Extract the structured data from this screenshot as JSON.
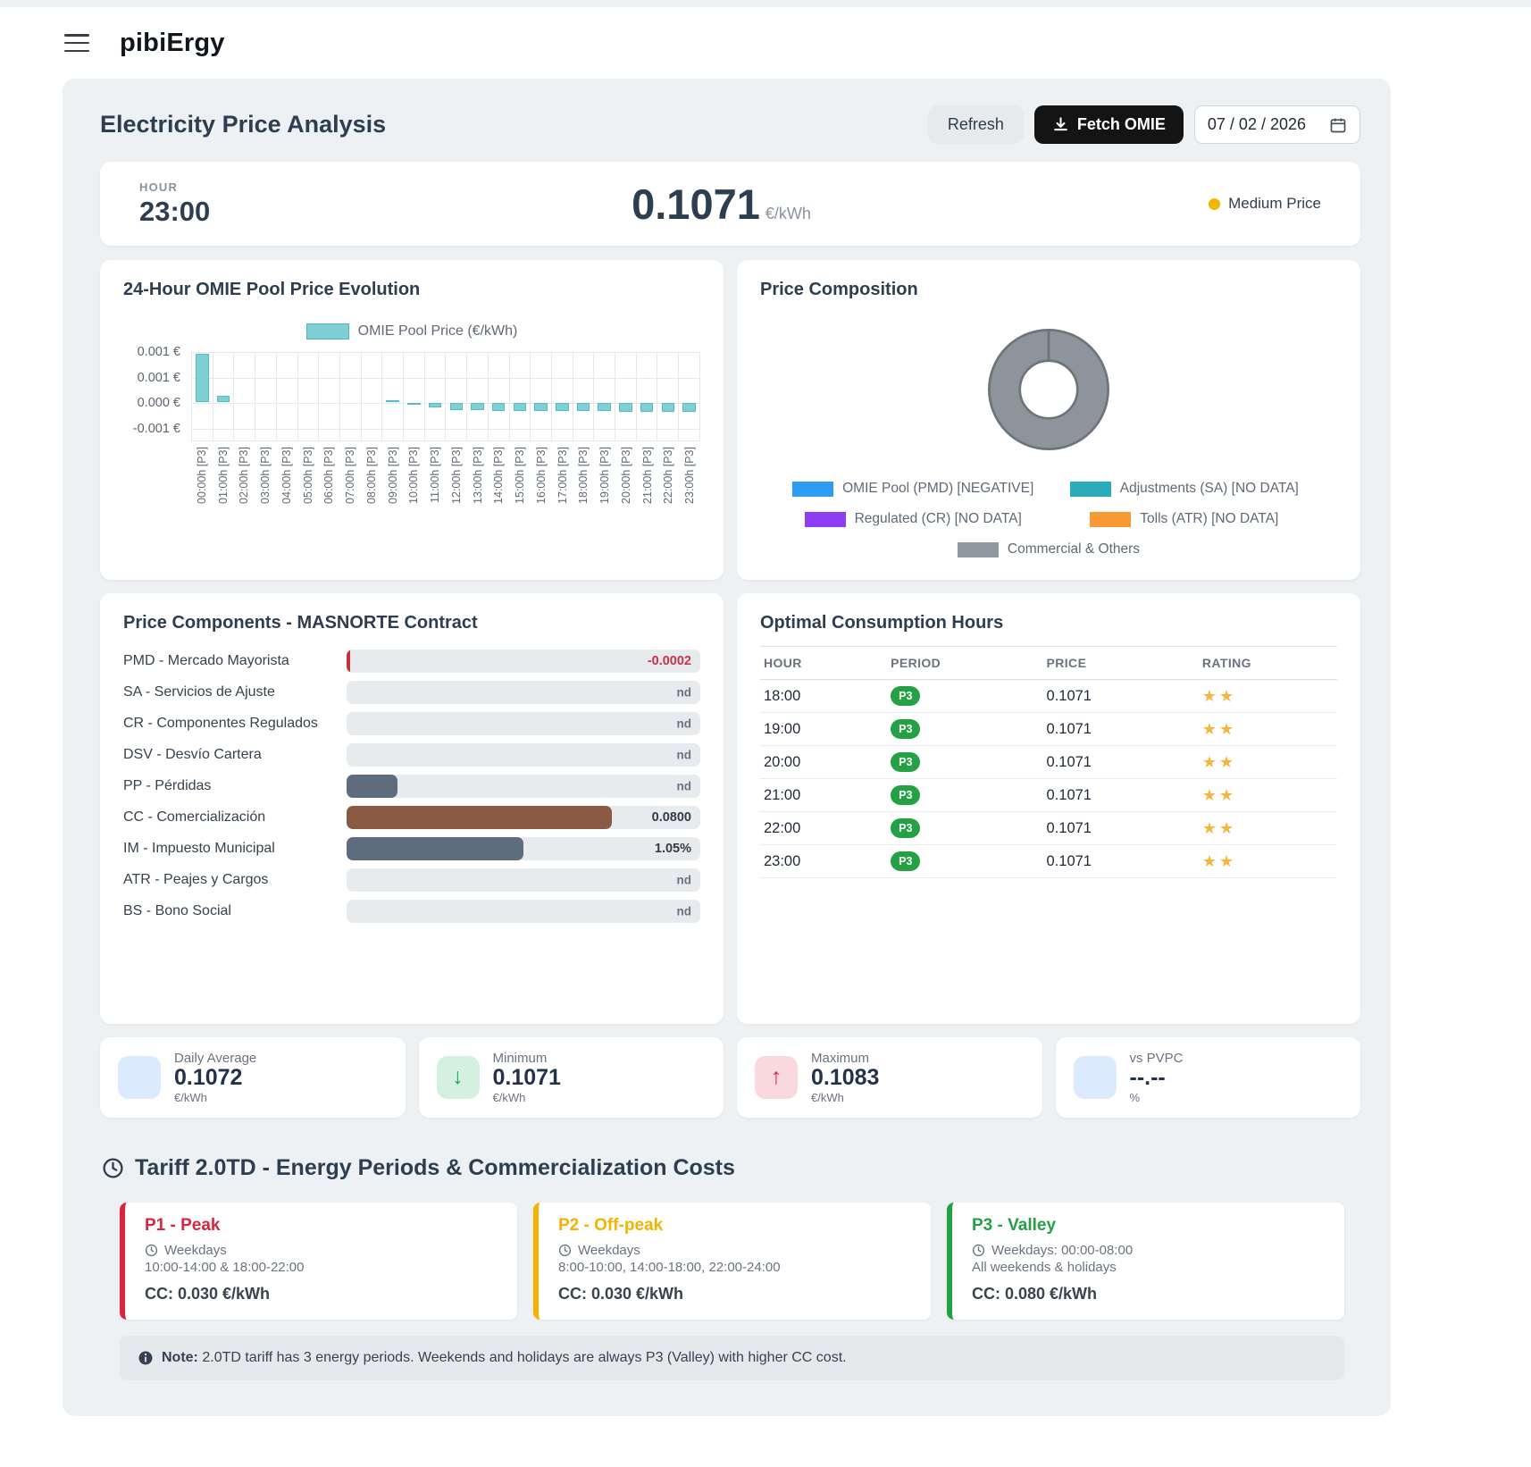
{
  "app": {
    "title": "pibiErgy"
  },
  "panel": {
    "title": "Electricity Price Analysis",
    "refresh_label": "Refresh",
    "fetch_label": "Fetch OMIE",
    "date_value": "07 / 02 / 2026"
  },
  "current": {
    "hour_label": "HOUR",
    "hour": "23:00",
    "price": "0.1071",
    "unit": "€/kWh",
    "status": "Medium Price",
    "status_color": "#f3b700"
  },
  "chart_data": {
    "type": "bar",
    "title": "24-Hour OMIE Pool Price Evolution",
    "legend": "OMIE Pool Price (€/kWh)",
    "bar_color": "#7fd0d5",
    "bar_border": "#54bcc2",
    "categories": [
      "00:00h [P3]",
      "01:00h [P3]",
      "02:00h [P3]",
      "03:00h [P3]",
      "04:00h [P3]",
      "05:00h [P3]",
      "06:00h [P3]",
      "07:00h [P3]",
      "08:00h [P3]",
      "09:00h [P3]",
      "10:00h [P3]",
      "11:00h [P3]",
      "12:00h [P3]",
      "13:00h [P3]",
      "14:00h [P3]",
      "15:00h [P3]",
      "16:00h [P3]",
      "17:00h [P3]",
      "18:00h [P3]",
      "19:00h [P3]",
      "20:00h [P3]",
      "21:00h [P3]",
      "22:00h [P3]",
      "23:00h [P3]"
    ],
    "values": [
      0.00095,
      0.00013,
      0,
      0,
      0,
      0,
      0,
      0,
      0,
      1e-05,
      -3e-05,
      -9e-05,
      -0.00013,
      -0.00013,
      -0.00015,
      -0.00015,
      -0.00016,
      -0.00016,
      -0.00016,
      -0.00016,
      -0.00017,
      -0.00017,
      -0.00017,
      -0.00017
    ],
    "ylim": [
      -0.00075,
      0.001
    ],
    "ytick_values": [
      0.001,
      0.0005,
      0,
      -0.0005
    ],
    "ytick_labels": [
      "0.001 €",
      "0.001 €",
      "0.000 €",
      "-0.001 €"
    ],
    "xlabel": "",
    "ylabel": ""
  },
  "composition": {
    "title": "Price Composition",
    "donut": {
      "fill": "#8d949b",
      "border": "#6e747b",
      "full_slice": "Commercial & Others",
      "full_pct": 100
    },
    "legend": [
      {
        "label": "OMIE Pool (PMD) [NEGATIVE]",
        "color": "#2e9bf5"
      },
      {
        "label": "Adjustments (SA) [NO DATA]",
        "color": "#2aacb8"
      },
      {
        "label": "Regulated (CR) [NO DATA]",
        "color": "#8e3df5"
      },
      {
        "label": "Tolls (ATR) [NO DATA]",
        "color": "#f89a33"
      },
      {
        "label": "Commercial & Others",
        "color": "#8f979f"
      }
    ]
  },
  "components": {
    "title": "Price Components - MASNORTE Contract",
    "rows": [
      {
        "label": "PMD - Mercado Mayorista",
        "value": "-0.0002",
        "value_style": "red",
        "bar_pct": 0.8,
        "bar_color": "#c8323e"
      },
      {
        "label": "SA - Servicios de Ajuste",
        "value": "nd",
        "value_style": "nd",
        "bar_pct": 0,
        "bar_color": ""
      },
      {
        "label": "CR - Componentes Regulados",
        "value": "nd",
        "value_style": "nd",
        "bar_pct": 0,
        "bar_color": ""
      },
      {
        "label": "DSV - Desvío Cartera",
        "value": "nd",
        "value_style": "nd",
        "bar_pct": 0,
        "bar_color": ""
      },
      {
        "label": "PP - Pérdidas",
        "value": "nd",
        "value_style": "nd",
        "bar_pct": 14.5,
        "bar_color": "#5d6d7e"
      },
      {
        "label": "CC - Comercialización",
        "value": "0.0800",
        "value_style": "dark",
        "bar_pct": 75,
        "bar_color": "#8a5a45"
      },
      {
        "label": "IM - Impuesto Municipal",
        "value": "1.05%",
        "value_style": "dark",
        "bar_pct": 50,
        "bar_color": "#5d6d7e"
      },
      {
        "label": "ATR - Peajes y Cargos",
        "value": "nd",
        "value_style": "nd",
        "bar_pct": 0,
        "bar_color": ""
      },
      {
        "label": "BS - Bono Social",
        "value": "nd",
        "value_style": "nd",
        "bar_pct": 0,
        "bar_color": ""
      }
    ]
  },
  "optimal": {
    "title": "Optimal Consumption Hours",
    "headers": [
      "HOUR",
      "PERIOD",
      "PRICE",
      "RATING"
    ],
    "rows": [
      {
        "hour": "18:00",
        "period": "P3",
        "price": "0.1071",
        "stars": 2
      },
      {
        "hour": "19:00",
        "period": "P3",
        "price": "0.1071",
        "stars": 2
      },
      {
        "hour": "20:00",
        "period": "P3",
        "price": "0.1071",
        "stars": 2
      },
      {
        "hour": "21:00",
        "period": "P3",
        "price": "0.1071",
        "stars": 2
      },
      {
        "hour": "22:00",
        "period": "P3",
        "price": "0.1071",
        "stars": 2
      },
      {
        "hour": "23:00",
        "period": "P3",
        "price": "0.1071",
        "stars": 2
      }
    ]
  },
  "stats": [
    {
      "label": "Daily Average",
      "value": "0.1072",
      "unit": "€/kWh",
      "icon": "blue-square-icon",
      "icon_bg": "#dbeafe",
      "arrow": "",
      "arrow_color": ""
    },
    {
      "label": "Minimum",
      "value": "0.1071",
      "unit": "€/kWh",
      "icon": "arrow-down-icon",
      "icon_bg": "#d3f1de",
      "arrow": "↓",
      "arrow_color": "#1ea74e"
    },
    {
      "label": "Maximum",
      "value": "0.1083",
      "unit": "€/kWh",
      "icon": "arrow-up-icon",
      "icon_bg": "#f9d8de",
      "arrow": "↑",
      "arrow_color": "#d92645"
    },
    {
      "label": "vs PVPC",
      "value": "--.--",
      "unit": "%",
      "icon": "blue-square-icon",
      "icon_bg": "#dbeafe",
      "arrow": "",
      "arrow_color": ""
    }
  ],
  "tariff": {
    "title": "Tariff 2.0TD - Energy Periods & Commercialization Costs",
    "cards": [
      {
        "name": "P1 - Peak",
        "color": "#d7263d",
        "schedule_label": "Weekdays",
        "schedule": "10:00-14:00 & 18:00-22:00",
        "cc": "CC: 0.030 €/kWh"
      },
      {
        "name": "P2 - Off-peak",
        "color": "#f5b301",
        "schedule_label": "Weekdays",
        "schedule": "8:00-10:00, 14:00-18:00, 22:00-24:00",
        "cc": "CC: 0.030 €/kWh"
      },
      {
        "name": "P3 - Valley",
        "color": "#23a144",
        "schedule_label": "Weekdays: 00:00-08:00",
        "schedule": "All weekends & holidays",
        "cc": "CC: 0.080 €/kWh"
      }
    ],
    "note_bold": "Note:",
    "note": "2.0TD tariff has 3 energy periods. Weekends and holidays are always P3 (Valley) with higher CC cost."
  }
}
